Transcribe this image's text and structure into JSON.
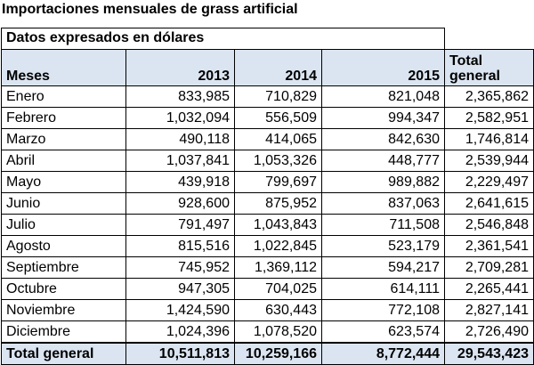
{
  "title": "Importaciones mensuales de grass artificial",
  "caption": "Datos expresados en dólares",
  "columns": [
    "Meses",
    "2013",
    "2014",
    "2015",
    "Total general"
  ],
  "rows": [
    {
      "mes": "Enero",
      "y2013": "833,985",
      "y2014": "710,829",
      "y2015": "821,048",
      "total": "2,365,862"
    },
    {
      "mes": "Febrero",
      "y2013": "1,032,094",
      "y2014": "556,509",
      "y2015": "994,347",
      "total": "2,582,951"
    },
    {
      "mes": "Marzo",
      "y2013": "490,118",
      "y2014": "414,065",
      "y2015": "842,630",
      "total": "1,746,814"
    },
    {
      "mes": "Abril",
      "y2013": "1,037,841",
      "y2014": "1,053,326",
      "y2015": "448,777",
      "total": "2,539,944"
    },
    {
      "mes": "Mayo",
      "y2013": "439,918",
      "y2014": "799,697",
      "y2015": "989,882",
      "total": "2,229,497"
    },
    {
      "mes": "Junio",
      "y2013": "928,600",
      "y2014": "875,952",
      "y2015": "837,063",
      "total": "2,641,615"
    },
    {
      "mes": "Julio",
      "y2013": "791,497",
      "y2014": "1,043,843",
      "y2015": "711,508",
      "total": "2,546,848"
    },
    {
      "mes": "Agosto",
      "y2013": "815,516",
      "y2014": "1,022,845",
      "y2015": "523,179",
      "total": "2,361,541"
    },
    {
      "mes": "Septiembre",
      "y2013": "745,952",
      "y2014": "1,369,112",
      "y2015": "594,217",
      "total": "2,709,281"
    },
    {
      "mes": "Octubre",
      "y2013": "947,305",
      "y2014": "704,025",
      "y2015": "614,111",
      "total": "2,265,441"
    },
    {
      "mes": "Noviembre",
      "y2013": "1,424,590",
      "y2014": "630,443",
      "y2015": "772,108",
      "total": "2,827,141"
    },
    {
      "mes": "Diciembre",
      "y2013": "1,024,396",
      "y2014": "1,078,520",
      "y2015": "623,574",
      "total": "2,726,490"
    }
  ],
  "total_row": {
    "mes": "Total general",
    "y2013": "10,511,813",
    "y2014": "10,259,166",
    "y2015": "8,772,444",
    "total": "29,543,423"
  },
  "colors": {
    "header_fill": "#dbe5f1",
    "border": "#000000"
  }
}
